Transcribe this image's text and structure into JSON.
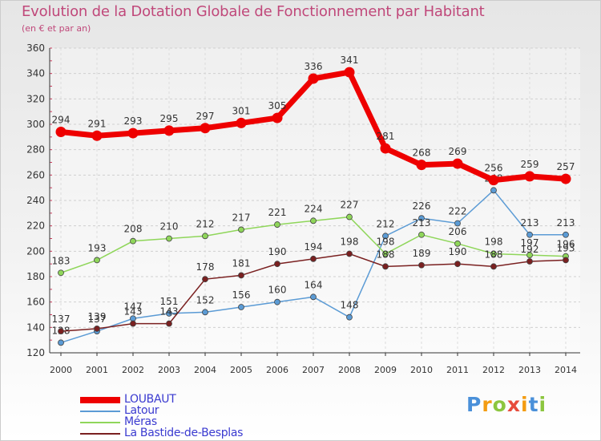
{
  "chart_data": {
    "type": "line",
    "title": "Evolution de la Dotation Globale de Fonctionnement par Habitant",
    "subtitle": "(en € et par an)",
    "xlabel": "",
    "ylabel": "",
    "x": [
      "2000",
      "2001",
      "2002",
      "2003",
      "2004",
      "2005",
      "2006",
      "2007",
      "2008",
      "2009",
      "2010",
      "2011",
      "2012",
      "2013",
      "2014"
    ],
    "ylim": [
      120,
      360
    ],
    "yticks": [
      120,
      140,
      160,
      180,
      200,
      220,
      240,
      260,
      280,
      300,
      320,
      340,
      360
    ],
    "grid": "horizontal",
    "legend_position": "bottom-left",
    "series": [
      {
        "name": "LOUBAUT",
        "color": "#ee0000",
        "emphasis": true,
        "values": [
          294,
          291,
          293,
          295,
          297,
          301,
          305,
          336,
          341,
          281,
          268,
          269,
          256,
          259,
          257
        ],
        "labels": [
          "294",
          "291",
          "293",
          "295",
          "297",
          "301",
          "305",
          "336",
          "341",
          "281",
          "268",
          "269",
          "256",
          "259",
          "257"
        ]
      },
      {
        "name": "Latour",
        "color": "#5b9bd5",
        "values": [
          128,
          137,
          147,
          151,
          152,
          156,
          160,
          164,
          148,
          212,
          226,
          222,
          248,
          213,
          213
        ],
        "labels": [
          "128",
          "137",
          "147",
          "151",
          "152",
          "156",
          "160",
          "164",
          "148",
          "212",
          "226",
          "222",
          "248",
          "213",
          "213"
        ]
      },
      {
        "name": "Méras",
        "color": "#8fd65a",
        "values": [
          183,
          193,
          208,
          210,
          212,
          217,
          221,
          224,
          227,
          198,
          213,
          206,
          198,
          197,
          196
        ],
        "labels": [
          "183",
          "193",
          "208",
          "210",
          "212",
          "217",
          "221",
          "224",
          "227",
          "198",
          "213",
          "206",
          "198",
          "197",
          "196"
        ]
      },
      {
        "name": "La Bastide-de-Besplas",
        "color": "#7a2020",
        "values": [
          137,
          139,
          143,
          143,
          178,
          181,
          190,
          194,
          198,
          188,
          189,
          190,
          188,
          192,
          193
        ],
        "labels": [
          "137",
          "139",
          "143",
          "143",
          "178",
          "181",
          "190",
          "194",
          "198",
          "188",
          "189",
          "190",
          "188",
          "192",
          "193"
        ]
      }
    ]
  },
  "brand": {
    "letters": [
      "P",
      "r",
      "o",
      "x",
      "i",
      "t",
      "i"
    ],
    "colors": [
      "#4a90d9",
      "#f39c12",
      "#8cc63f",
      "#e74c3c",
      "#f39c12",
      "#4a90d9",
      "#8cc63f"
    ]
  }
}
